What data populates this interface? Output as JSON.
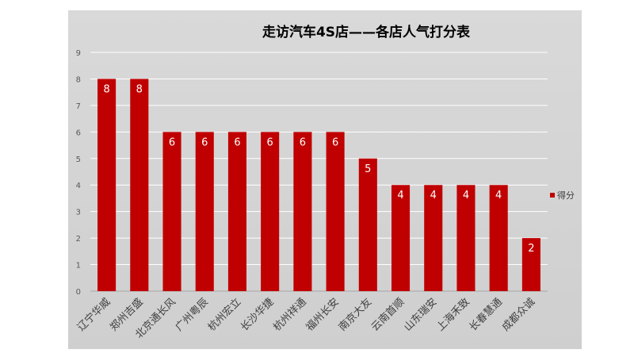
{
  "chart_data": {
    "type": "bar",
    "title": "走访汽车4S店——各店人气打分表",
    "xlabel": "",
    "ylabel": "",
    "categories": [
      "辽宁华威",
      "郑州吉盛",
      "北京通长风",
      "广州粤辰",
      "杭州宏立",
      "长沙华捷",
      "杭州祥通",
      "福州长安",
      "南京大友",
      "云南首顺",
      "山东瑞安",
      "上海禾致",
      "长春慧通",
      "成都众诚"
    ],
    "series": [
      {
        "name": "得分",
        "values": [
          8,
          8,
          6,
          6,
          6,
          6,
          6,
          6,
          5,
          4,
          4,
          4,
          4,
          2
        ]
      }
    ],
    "ylim": [
      0,
      9
    ],
    "yticks": [
      0,
      1,
      2,
      3,
      4,
      5,
      6,
      7,
      8,
      9
    ],
    "grid": true,
    "legend": "right",
    "data_labels": true,
    "bar_color": "#c00000"
  }
}
